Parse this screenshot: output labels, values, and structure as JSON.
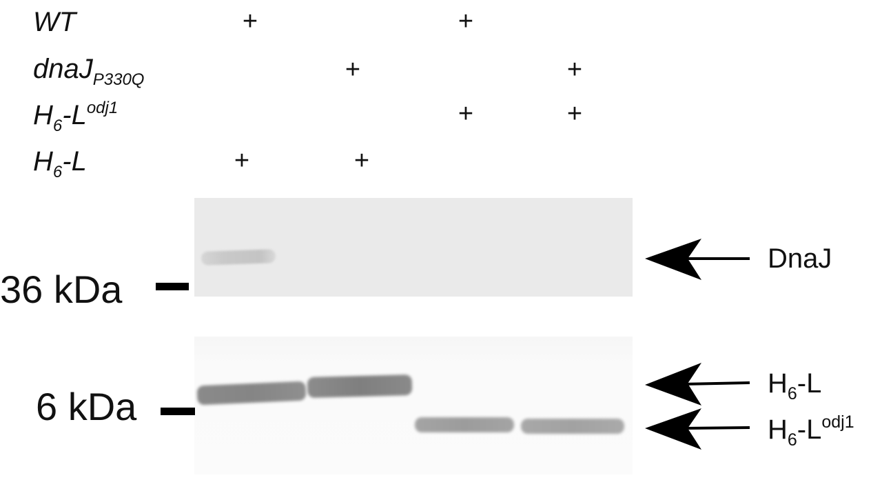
{
  "row_labels": {
    "wt": "WT",
    "dnaj_main": "dnaJ",
    "dnaj_sub": "P330Q",
    "h6lodj_main": "H",
    "h6lodj_sub": "6",
    "h6lodj_mid": "-L",
    "h6lodj_sup": "odj1",
    "h6l_main": "H",
    "h6l_sub": "6",
    "h6l_mid": "-L"
  },
  "lane_marks": {
    "plus": "+",
    "wt": [
      true,
      false,
      true,
      false
    ],
    "dnaj_p330q": [
      false,
      true,
      false,
      true
    ],
    "h6_l_odj1": [
      false,
      false,
      true,
      true
    ],
    "h6_l": [
      true,
      true,
      false,
      false
    ]
  },
  "markers": {
    "mw_36": "36 kDa",
    "mw_6": "6 kDa"
  },
  "band_labels": {
    "dnaj": "DnaJ",
    "h6l_main": "H",
    "h6l_sub": "6",
    "h6l_mid": "-L",
    "h6lodj_main": "H",
    "h6lodj_sub": "6",
    "h6lodj_mid": "-L",
    "h6lodj_sup": "odj1"
  },
  "colors": {
    "text": "#111111",
    "gel_background": "#eaeaea",
    "band_dark": "#858585"
  }
}
